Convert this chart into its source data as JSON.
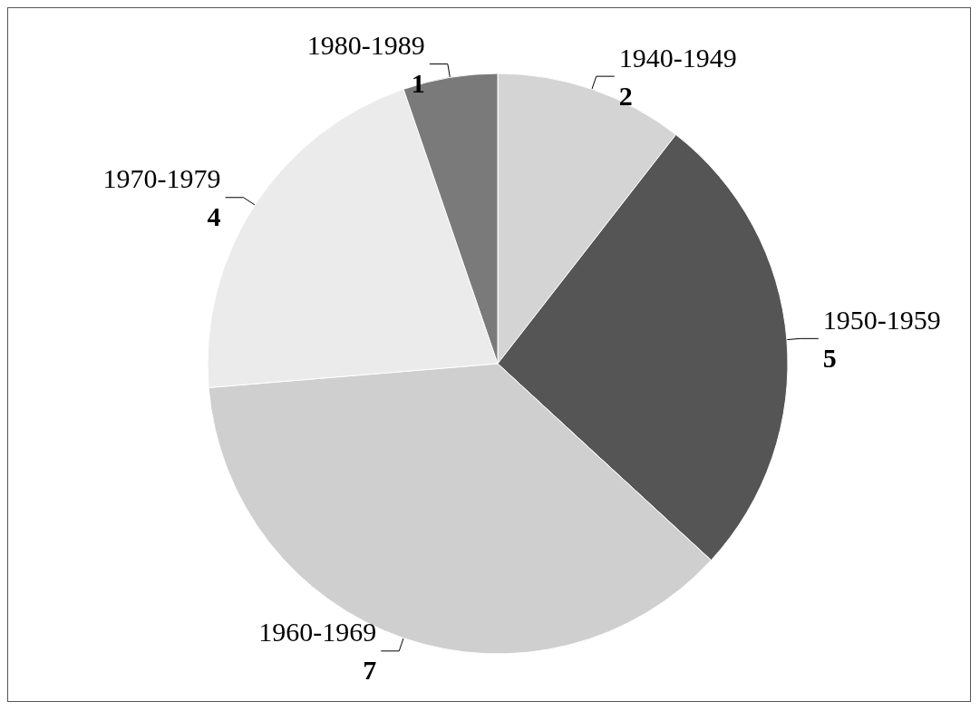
{
  "chart_data": {
    "type": "pie",
    "categories": [
      "1940-1949",
      "1950-1959",
      "1960-1969",
      "1970-1979",
      "1980-1989"
    ],
    "values": [
      2,
      5,
      7,
      4,
      1
    ],
    "colors": [
      "#d4d4d4",
      "#555555",
      "#cfcfcf",
      "#ebebeb",
      "#7a7a7a"
    ],
    "data_labels": true,
    "legend": false
  }
}
